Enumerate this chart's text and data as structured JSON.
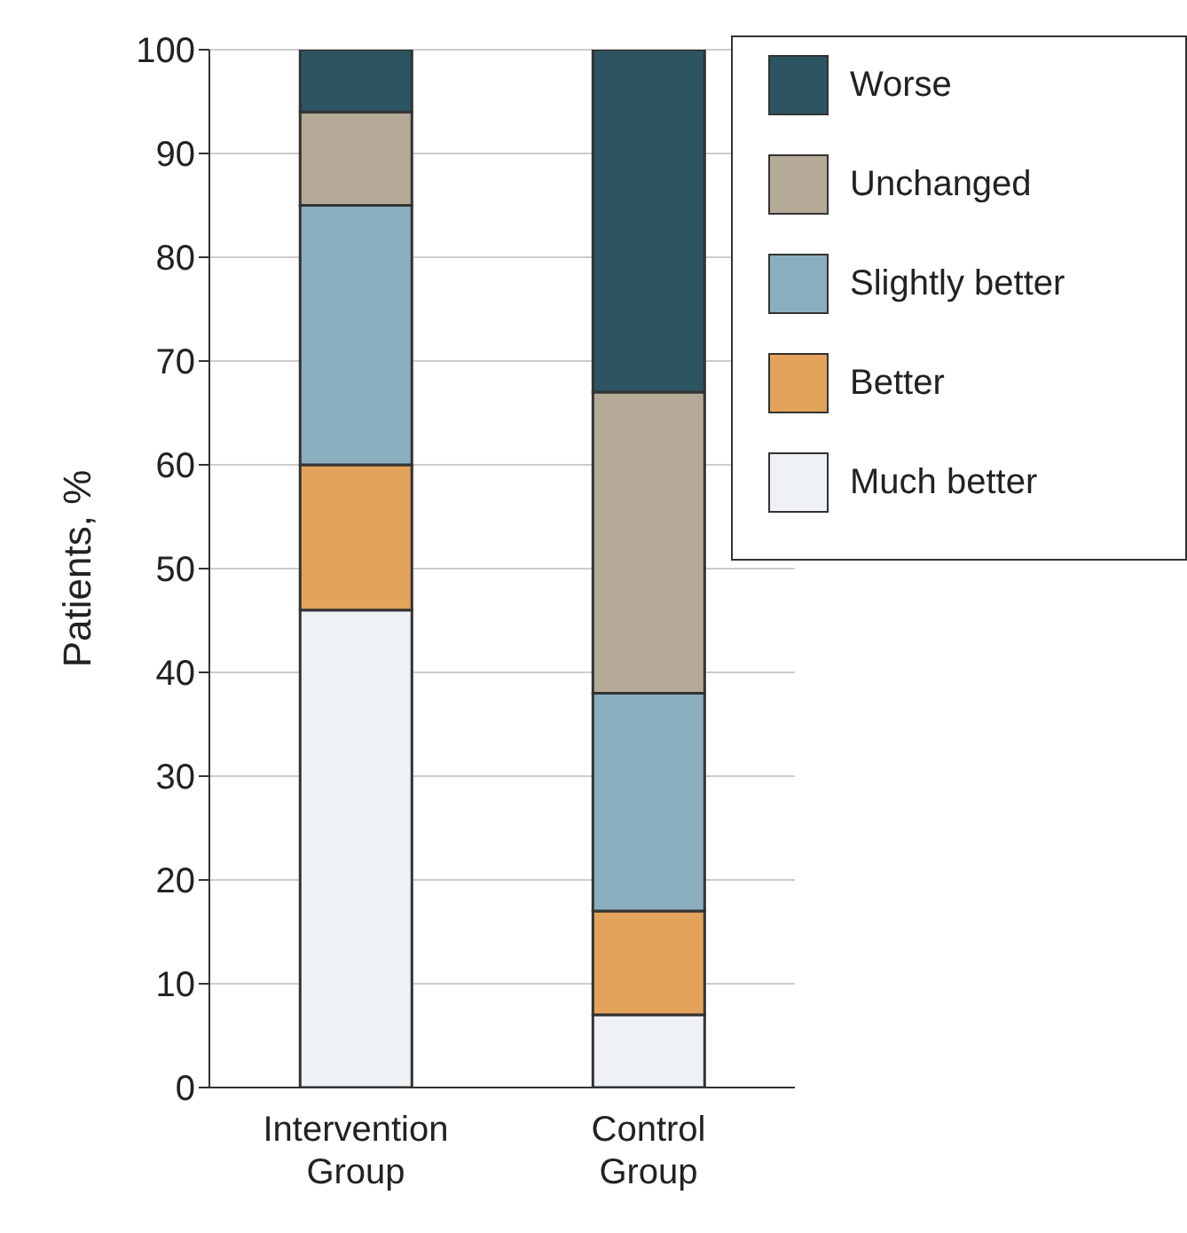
{
  "chart_data": {
    "type": "bar",
    "stacked": true,
    "ylabel": "Patients, %",
    "categories": [
      "Intervention Group",
      "Control Group"
    ],
    "series": [
      {
        "name": "Much better",
        "color": "#eef2f5",
        "values": [
          46,
          7
        ]
      },
      {
        "name": "Better",
        "color": "#e3a35a",
        "values": [
          14,
          10
        ]
      },
      {
        "name": "Slightly better",
        "color": "#8aaebe",
        "values": [
          25,
          21
        ]
      },
      {
        "name": "Unchanged",
        "color": "#b5aa98",
        "values": [
          9,
          29
        ]
      },
      {
        "name": "Worse",
        "color": "#2d5461",
        "values": [
          6,
          33
        ]
      }
    ],
    "ylim": [
      0,
      100
    ],
    "yticks": [
      0,
      10,
      20,
      30,
      40,
      50,
      60,
      70,
      80,
      90,
      100
    ],
    "grid": "y",
    "legend": "top right"
  }
}
